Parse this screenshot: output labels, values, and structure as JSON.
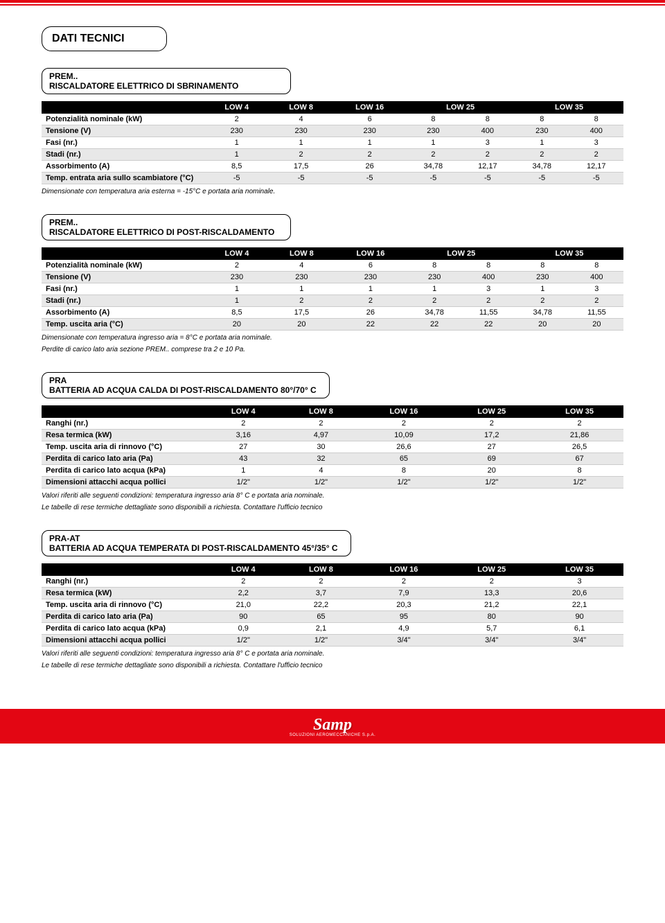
{
  "page_title": "DATI TECNICI",
  "colors": {
    "accent": "#e30613",
    "header_bg": "#000000",
    "row_alt": "#e8e8e8"
  },
  "sections": [
    {
      "code": "PREM..",
      "desc": "RISCALDATORE ELETTRICO DI SBRINAMENTO",
      "col_layout": "double",
      "headers": [
        "",
        "LOW 4",
        "LOW 8",
        "LOW 16",
        "LOW 25",
        "LOW 35"
      ],
      "rows": [
        {
          "label": "Potenzialità nominale (kW)",
          "v": [
            "2",
            "4",
            "6",
            "8",
            "8",
            "8",
            "8"
          ]
        },
        {
          "label": "Tensione (V)",
          "v": [
            "230",
            "230",
            "230",
            "230",
            "400",
            "230",
            "400"
          ]
        },
        {
          "label": "Fasi (nr.)",
          "v": [
            "1",
            "1",
            "1",
            "1",
            "3",
            "1",
            "3"
          ]
        },
        {
          "label": "Stadi (nr.)",
          "v": [
            "1",
            "2",
            "2",
            "2",
            "2",
            "2",
            "2"
          ]
        },
        {
          "label": "Assorbimento (A)",
          "v": [
            "8,5",
            "17,5",
            "26",
            "34,78",
            "12,17",
            "34,78",
            "12,17"
          ]
        },
        {
          "label": "Temp. entrata aria sullo scambiatore (°C)",
          "v": [
            "-5",
            "-5",
            "-5",
            "-5",
            "-5",
            "-5",
            "-5"
          ]
        }
      ],
      "notes": [
        "Dimensionate con temperatura aria esterna = -15°C e portata aria nominale."
      ]
    },
    {
      "code": "PREM..",
      "desc": "RISCALDATORE ELETTRICO DI POST-RISCALDAMENTO",
      "col_layout": "double",
      "headers": [
        "",
        "LOW 4",
        "LOW 8",
        "LOW 16",
        "LOW 25",
        "LOW 35"
      ],
      "rows": [
        {
          "label": "Potenzialità nominale (kW)",
          "v": [
            "2",
            "4",
            "6",
            "8",
            "8",
            "8",
            "8"
          ]
        },
        {
          "label": "Tensione (V)",
          "v": [
            "230",
            "230",
            "230",
            "230",
            "400",
            "230",
            "400"
          ]
        },
        {
          "label": "Fasi (nr.)",
          "v": [
            "1",
            "1",
            "1",
            "1",
            "3",
            "1",
            "3"
          ]
        },
        {
          "label": "Stadi (nr.)",
          "v": [
            "1",
            "2",
            "2",
            "2",
            "2",
            "2",
            "2"
          ]
        },
        {
          "label": "Assorbimento (A)",
          "v": [
            "8,5",
            "17,5",
            "26",
            "34,78",
            "11,55",
            "34,78",
            "11,55"
          ]
        },
        {
          "label": "Temp. uscita aria (°C)",
          "v": [
            "20",
            "20",
            "22",
            "22",
            "22",
            "20",
            "20"
          ]
        }
      ],
      "notes": [
        "Dimensionate con temperatura ingresso aria = 8°C e portata aria nominale.",
        "Perdite di carico lato aria sezione PREM.. comprese tra 2 e 10 Pa."
      ]
    },
    {
      "code": "PRA",
      "desc": "BATTERIA AD ACQUA CALDA DI POST-RISCALDAMENTO 80°/70° C",
      "col_layout": "single",
      "headers": [
        "",
        "LOW 4",
        "LOW 8",
        "LOW 16",
        "LOW 25",
        "LOW 35"
      ],
      "rows": [
        {
          "label": "Ranghi (nr.)",
          "v": [
            "2",
            "2",
            "2",
            "2",
            "2"
          ]
        },
        {
          "label": "Resa termica (kW)",
          "v": [
            "3,16",
            "4,97",
            "10,09",
            "17,2",
            "21,86"
          ]
        },
        {
          "label": "Temp. uscita aria di rinnovo (°C)",
          "v": [
            "27",
            "30",
            "26,6",
            "27",
            "26,5"
          ]
        },
        {
          "label": "Perdita di carico lato aria (Pa)",
          "v": [
            "43",
            "32",
            "65",
            "69",
            "67"
          ]
        },
        {
          "label": "Perdita di carico lato acqua (kPa)",
          "v": [
            "1",
            "4",
            "8",
            "20",
            "8"
          ]
        },
        {
          "label": "Dimensioni attacchi acqua pollici",
          "v": [
            "1/2\"",
            "1/2\"",
            "1/2\"",
            "1/2\"",
            "1/2\""
          ]
        }
      ],
      "notes": [
        "Valori riferiti alle seguenti condizioni: temperatura ingresso aria 8° C e portata aria nominale.",
        "Le tabelle di rese termiche dettagliate sono disponibili a richiesta. Contattare l'ufficio tecnico"
      ]
    },
    {
      "code": "PRA-AT",
      "desc": "BATTERIA AD ACQUA TEMPERATA DI POST-RISCALDAMENTO 45°/35° C",
      "col_layout": "single",
      "headers": [
        "",
        "LOW 4",
        "LOW 8",
        "LOW 16",
        "LOW 25",
        "LOW 35"
      ],
      "rows": [
        {
          "label": "Ranghi (nr.)",
          "v": [
            "2",
            "2",
            "2",
            "2",
            "3"
          ]
        },
        {
          "label": "Resa termica (kW)",
          "v": [
            "2,2",
            "3,7",
            "7,9",
            "13,3",
            "20,6"
          ]
        },
        {
          "label": "Temp. uscita aria di rinnovo (°C)",
          "v": [
            "21,0",
            "22,2",
            "20,3",
            "21,2",
            "22,1"
          ]
        },
        {
          "label": "Perdita di carico lato aria (Pa)",
          "v": [
            "90",
            "65",
            "95",
            "80",
            "90"
          ]
        },
        {
          "label": "Perdita di carico lato acqua (kPa)",
          "v": [
            "0,9",
            "2,1",
            "4,9",
            "5,7",
            "6,1"
          ]
        },
        {
          "label": "Dimensioni attacchi acqua pollici",
          "v": [
            "1/2\"",
            "1/2\"",
            "3/4\"",
            "3/4\"",
            "3/4\""
          ]
        }
      ],
      "notes": [
        "Valori riferiti alle seguenti condizioni: temperatura ingresso aria 8° C e portata aria nominale.",
        "Le tabelle di rese termiche dettagliate sono disponibili a richiesta. Contattare l'ufficio tecnico"
      ]
    }
  ],
  "footer": {
    "logo_text": "Samp",
    "logo_sub": "SOLUZIONI AEROMECCANICHE S.p.A."
  }
}
